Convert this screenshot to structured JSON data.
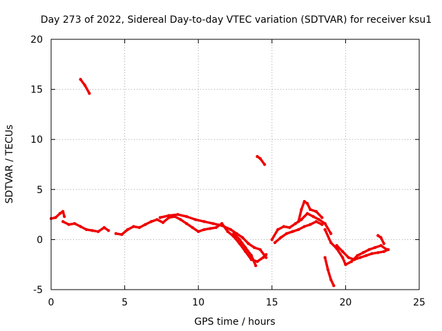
{
  "chart_data": {
    "type": "scatter",
    "title": "Day 273 of 2022, Sidereal Day-to-day VTEC variation (SDTVAR) for receiver ksu1",
    "xlabel": "GPS time / hours",
    "ylabel": "SDTVAR / TECUs",
    "xlim": [
      0,
      25
    ],
    "ylim": [
      -5,
      20
    ],
    "xticks": [
      0,
      5,
      10,
      15,
      20,
      25
    ],
    "yticks": [
      -5,
      0,
      5,
      10,
      15,
      20
    ],
    "grid": true,
    "color": "#ee0000",
    "series": [
      {
        "name": "track-1",
        "points": [
          [
            0,
            2.1
          ],
          [
            0.3,
            2.2
          ],
          [
            0.6,
            2.6
          ],
          [
            0.8,
            2.8
          ],
          [
            0.9,
            2.3
          ]
        ]
      },
      {
        "name": "track-2",
        "points": [
          [
            0.8,
            1.8
          ],
          [
            1.2,
            1.5
          ],
          [
            1.6,
            1.6
          ],
          [
            2.0,
            1.3
          ],
          [
            2.4,
            1.0
          ],
          [
            2.8,
            0.9
          ],
          [
            3.2,
            0.8
          ],
          [
            3.6,
            1.2
          ],
          [
            3.9,
            0.9
          ]
        ]
      },
      {
        "name": "track-3",
        "points": [
          [
            2.0,
            16.0
          ],
          [
            2.3,
            15.4
          ],
          [
            2.6,
            14.6
          ]
        ]
      },
      {
        "name": "track-4",
        "points": [
          [
            4.4,
            0.6
          ],
          [
            4.8,
            0.5
          ],
          [
            5.2,
            1.0
          ],
          [
            5.6,
            1.3
          ],
          [
            6.0,
            1.2
          ],
          [
            6.4,
            1.5
          ],
          [
            6.8,
            1.8
          ],
          [
            7.2,
            2.0
          ],
          [
            7.6,
            1.7
          ],
          [
            8.0,
            2.2
          ],
          [
            8.4,
            2.3
          ],
          [
            8.8,
            2.0
          ],
          [
            9.2,
            1.6
          ],
          [
            9.6,
            1.2
          ],
          [
            10.0,
            0.8
          ],
          [
            10.4,
            1.0
          ],
          [
            10.8,
            1.1
          ],
          [
            11.2,
            1.2
          ],
          [
            11.6,
            1.6
          ],
          [
            12.0,
            0.8
          ],
          [
            12.4,
            0.3
          ],
          [
            12.8,
            -0.4
          ],
          [
            13.2,
            -1.2
          ],
          [
            13.6,
            -2.0
          ],
          [
            14.0,
            -2.2
          ],
          [
            14.4,
            -1.8
          ],
          [
            14.6,
            -1.5
          ]
        ]
      },
      {
        "name": "track-5",
        "points": [
          [
            7.4,
            2.2
          ],
          [
            8.0,
            2.4
          ],
          [
            8.6,
            2.5
          ],
          [
            9.2,
            2.3
          ],
          [
            9.8,
            2.0
          ],
          [
            10.4,
            1.8
          ],
          [
            11.0,
            1.6
          ],
          [
            11.6,
            1.4
          ],
          [
            12.2,
            1.0
          ],
          [
            12.6,
            0.6
          ],
          [
            13.0,
            0.2
          ],
          [
            13.4,
            -0.4
          ],
          [
            13.8,
            -0.8
          ],
          [
            14.2,
            -1.0
          ],
          [
            14.6,
            -1.8
          ]
        ]
      },
      {
        "name": "track-6",
        "points": [
          [
            12.4,
            0.6
          ],
          [
            12.8,
            0.0
          ],
          [
            13.2,
            -0.8
          ],
          [
            13.6,
            -1.6
          ],
          [
            13.9,
            -2.6
          ]
        ]
      },
      {
        "name": "track-7",
        "points": [
          [
            14.0,
            8.3
          ],
          [
            14.2,
            8.1
          ],
          [
            14.5,
            7.5
          ]
        ]
      },
      {
        "name": "track-8",
        "points": [
          [
            15.0,
            0.0
          ],
          [
            15.4,
            1.0
          ],
          [
            15.8,
            1.3
          ],
          [
            16.2,
            1.2
          ],
          [
            16.6,
            1.6
          ],
          [
            17.0,
            2.0
          ],
          [
            17.4,
            2.6
          ],
          [
            17.8,
            2.3
          ],
          [
            18.2,
            2.0
          ],
          [
            18.6,
            1.6
          ],
          [
            19.0,
            0.6
          ]
        ]
      },
      {
        "name": "track-9",
        "points": [
          [
            15.2,
            -0.3
          ],
          [
            15.6,
            0.2
          ],
          [
            16.0,
            0.6
          ],
          [
            16.4,
            0.8
          ],
          [
            16.8,
            1.0
          ],
          [
            17.2,
            1.3
          ],
          [
            17.6,
            1.5
          ],
          [
            18.0,
            1.8
          ],
          [
            18.4,
            1.5
          ]
        ]
      },
      {
        "name": "track-10",
        "points": [
          [
            16.8,
            1.8
          ],
          [
            17.0,
            3.0
          ],
          [
            17.2,
            3.8
          ],
          [
            17.4,
            3.6
          ],
          [
            17.6,
            3.0
          ],
          [
            18.0,
            2.8
          ],
          [
            18.4,
            2.2
          ]
        ]
      },
      {
        "name": "track-11",
        "points": [
          [
            18.6,
            1.0
          ],
          [
            19.0,
            -0.3
          ],
          [
            19.4,
            -0.9
          ],
          [
            19.8,
            -1.8
          ],
          [
            20.0,
            -2.5
          ],
          [
            20.4,
            -2.2
          ],
          [
            20.8,
            -1.6
          ],
          [
            21.2,
            -1.3
          ],
          [
            21.6,
            -1.0
          ],
          [
            22.0,
            -0.8
          ],
          [
            22.4,
            -0.6
          ],
          [
            22.8,
            -1.0
          ]
        ]
      },
      {
        "name": "track-12",
        "points": [
          [
            19.4,
            -0.6
          ],
          [
            19.8,
            -1.2
          ],
          [
            20.2,
            -1.8
          ],
          [
            20.6,
            -2.0
          ],
          [
            21.0,
            -1.8
          ],
          [
            21.4,
            -1.6
          ],
          [
            21.8,
            -1.4
          ],
          [
            22.2,
            -1.3
          ],
          [
            22.6,
            -1.2
          ],
          [
            22.9,
            -1.0
          ]
        ]
      },
      {
        "name": "track-13",
        "points": [
          [
            22.2,
            0.4
          ],
          [
            22.4,
            0.2
          ],
          [
            22.6,
            -0.4
          ]
        ]
      },
      {
        "name": "track-14",
        "points": [
          [
            18.6,
            -1.8
          ],
          [
            18.8,
            -3.0
          ],
          [
            19.0,
            -4.0
          ],
          [
            19.2,
            -4.6
          ]
        ]
      }
    ]
  }
}
